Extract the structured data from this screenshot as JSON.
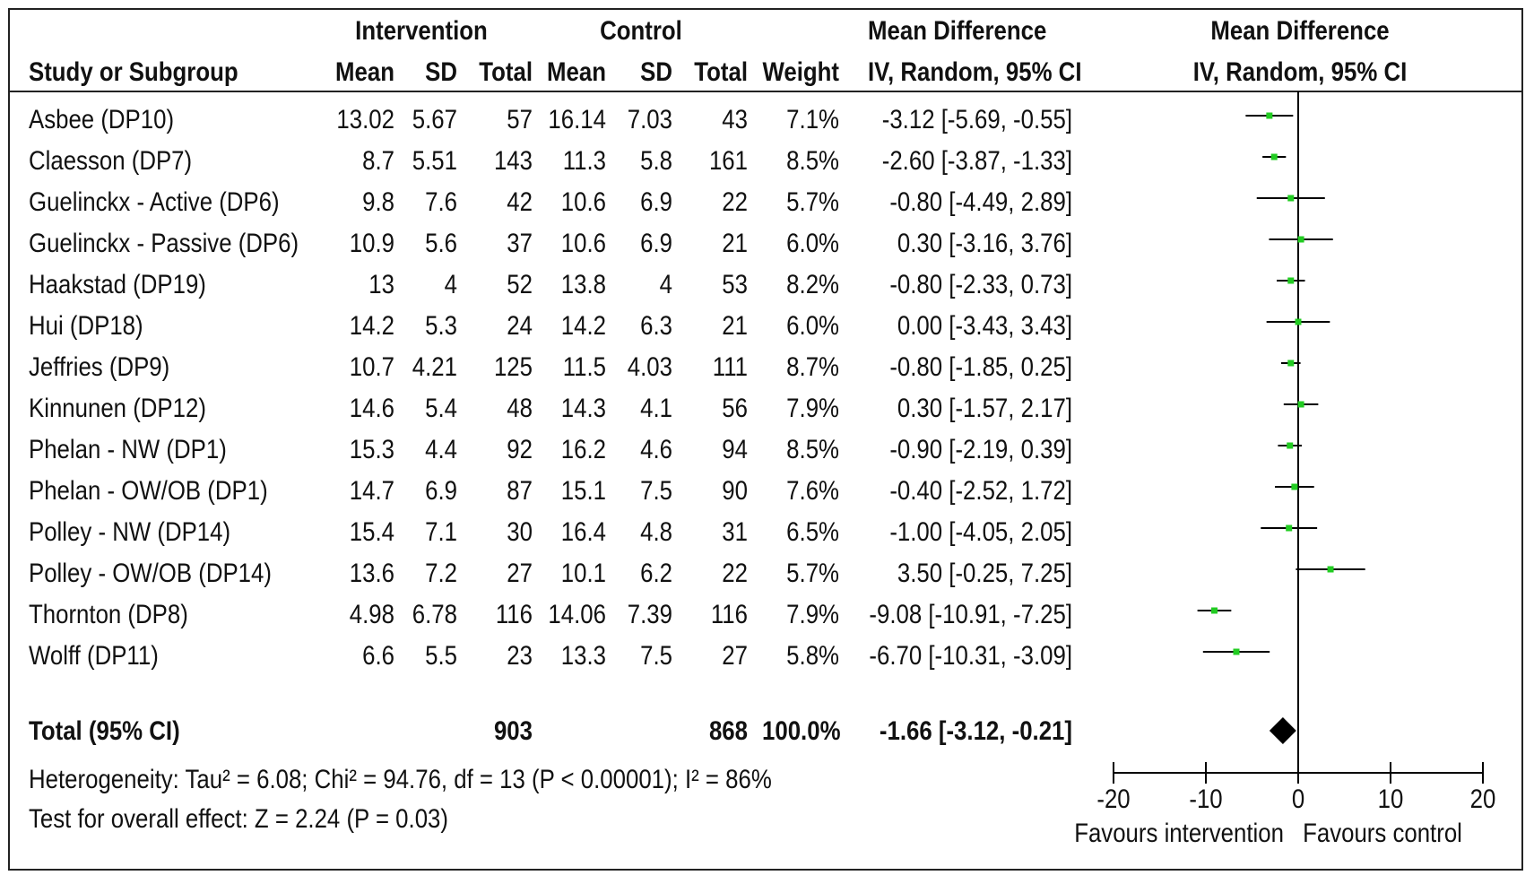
{
  "header": {
    "group1": "Intervention",
    "group2": "Control",
    "md_col": "Mean Difference",
    "md_col_sub": "IV, Random, 95% CI",
    "plot_col": "Mean Difference",
    "plot_col_sub": "IV, Random, 95% CI",
    "study": "Study or Subgroup",
    "mean": "Mean",
    "sd": "SD",
    "total": "Total",
    "weight": "Weight"
  },
  "rows": [
    {
      "study": "Asbee (DP10)",
      "m1": "13.02",
      "sd1": "5.67",
      "n1": "57",
      "m2": "16.14",
      "sd2": "7.03",
      "n2": "43",
      "weight": "7.1%",
      "ci": "-3.12 [-5.69, -0.55]"
    },
    {
      "study": "Claesson (DP7)",
      "m1": "8.7",
      "sd1": "5.51",
      "n1": "143",
      "m2": "11.3",
      "sd2": "5.8",
      "n2": "161",
      "weight": "8.5%",
      "ci": "-2.60 [-3.87, -1.33]"
    },
    {
      "study": "Guelinckx  - Active (DP6)",
      "m1": "9.8",
      "sd1": "7.6",
      "n1": "42",
      "m2": "10.6",
      "sd2": "6.9",
      "n2": "22",
      "weight": "5.7%",
      "ci": "-0.80 [-4.49, 2.89]"
    },
    {
      "study": "Guelinckx - Passive (DP6)",
      "m1": "10.9",
      "sd1": "5.6",
      "n1": "37",
      "m2": "10.6",
      "sd2": "6.9",
      "n2": "21",
      "weight": "6.0%",
      "ci": "0.30 [-3.16, 3.76]"
    },
    {
      "study": "Haakstad (DP19)",
      "m1": "13",
      "sd1": "4",
      "n1": "52",
      "m2": "13.8",
      "sd2": "4",
      "n2": "53",
      "weight": "8.2%",
      "ci": "-0.80 [-2.33, 0.73]"
    },
    {
      "study": "Hui (DP18)",
      "m1": "14.2",
      "sd1": "5.3",
      "n1": "24",
      "m2": "14.2",
      "sd2": "6.3",
      "n2": "21",
      "weight": "6.0%",
      "ci": "0.00 [-3.43, 3.43]"
    },
    {
      "study": "Jeffries (DP9)",
      "m1": "10.7",
      "sd1": "4.21",
      "n1": "125",
      "m2": "11.5",
      "sd2": "4.03",
      "n2": "111",
      "weight": "8.7%",
      "ci": "-0.80 [-1.85, 0.25]"
    },
    {
      "study": "Kinnunen (DP12)",
      "m1": "14.6",
      "sd1": "5.4",
      "n1": "48",
      "m2": "14.3",
      "sd2": "4.1",
      "n2": "56",
      "weight": "7.9%",
      "ci": "0.30 [-1.57, 2.17]"
    },
    {
      "study": "Phelan - NW (DP1)",
      "m1": "15.3",
      "sd1": "4.4",
      "n1": "92",
      "m2": "16.2",
      "sd2": "4.6",
      "n2": "94",
      "weight": "8.5%",
      "ci": "-0.90 [-2.19, 0.39]"
    },
    {
      "study": "Phelan - OW/OB (DP1)",
      "m1": "14.7",
      "sd1": "6.9",
      "n1": "87",
      "m2": "15.1",
      "sd2": "7.5",
      "n2": "90",
      "weight": "7.6%",
      "ci": "-0.40 [-2.52, 1.72]"
    },
    {
      "study": "Polley - NW (DP14)",
      "m1": "15.4",
      "sd1": "7.1",
      "n1": "30",
      "m2": "16.4",
      "sd2": "4.8",
      "n2": "31",
      "weight": "6.5%",
      "ci": "-1.00 [-4.05, 2.05]"
    },
    {
      "study": "Polley - OW/OB (DP14)",
      "m1": "13.6",
      "sd1": "7.2",
      "n1": "27",
      "m2": "10.1",
      "sd2": "6.2",
      "n2": "22",
      "weight": "5.7%",
      "ci": "3.50 [-0.25, 7.25]"
    },
    {
      "study": "Thornton (DP8)",
      "m1": "4.98",
      "sd1": "6.78",
      "n1": "116",
      "m2": "14.06",
      "sd2": "7.39",
      "n2": "116",
      "weight": "7.9%",
      "ci": "-9.08 [-10.91, -7.25]"
    },
    {
      "study": "Wolff (DP11)",
      "m1": "6.6",
      "sd1": "5.5",
      "n1": "23",
      "m2": "13.3",
      "sd2": "7.5",
      "n2": "27",
      "weight": "5.8%",
      "ci": "-6.70 [-10.31, -3.09]"
    }
  ],
  "total_row": {
    "label": "Total (95% CI)",
    "n1": "903",
    "n2": "868",
    "weight": "100.0%",
    "ci": "-1.66 [-3.12, -0.21]"
  },
  "heterogeneity": "Heterogeneity: Tau² = 6.08; Chi² = 94.76, df = 13 (P < 0.00001); I² = 86%",
  "overall_effect": "Test for overall effect: Z = 2.24 (P = 0.03)",
  "axis": {
    "ticks": [
      "-20",
      "-10",
      "0",
      "10",
      "20"
    ],
    "favours_left": "Favours intervention",
    "favours_right": "Favours control"
  },
  "colors": {
    "marker": "#22cc22",
    "line": "#000000",
    "diamond": "#000000"
  },
  "chart_data": {
    "type": "forest",
    "title": "",
    "xlabel": "",
    "xlim": [
      -20,
      20
    ],
    "ticks": [
      -20,
      -10,
      0,
      10,
      20
    ],
    "studies": [
      "Asbee (DP10)",
      "Claesson (DP7)",
      "Guelinckx  - Active (DP6)",
      "Guelinckx - Passive (DP6)",
      "Haakstad (DP19)",
      "Hui (DP18)",
      "Jeffries (DP9)",
      "Kinnunen (DP12)",
      "Phelan - NW (DP1)",
      "Phelan - OW/OB (DP1)",
      "Polley - NW (DP14)",
      "Polley - OW/OB (DP14)",
      "Thornton (DP8)",
      "Wolff (DP11)"
    ],
    "estimates": [
      -3.12,
      -2.6,
      -0.8,
      0.3,
      -0.8,
      0.0,
      -0.8,
      0.3,
      -0.9,
      -0.4,
      -1.0,
      3.5,
      -9.08,
      -6.7
    ],
    "lower": [
      -5.69,
      -3.87,
      -4.49,
      -3.16,
      -2.33,
      -3.43,
      -1.85,
      -1.57,
      -2.19,
      -2.52,
      -4.05,
      -0.25,
      -10.91,
      -10.31
    ],
    "upper": [
      -0.55,
      -1.33,
      2.89,
      3.76,
      0.73,
      3.43,
      0.25,
      2.17,
      0.39,
      1.72,
      2.05,
      7.25,
      -7.25,
      -3.09
    ],
    "weights": [
      7.1,
      8.5,
      5.7,
      6.0,
      8.2,
      6.0,
      8.7,
      7.9,
      8.5,
      7.6,
      6.5,
      5.7,
      7.9,
      5.8
    ],
    "pooled": {
      "estimate": -1.66,
      "lower": -3.12,
      "upper": -0.21
    }
  }
}
